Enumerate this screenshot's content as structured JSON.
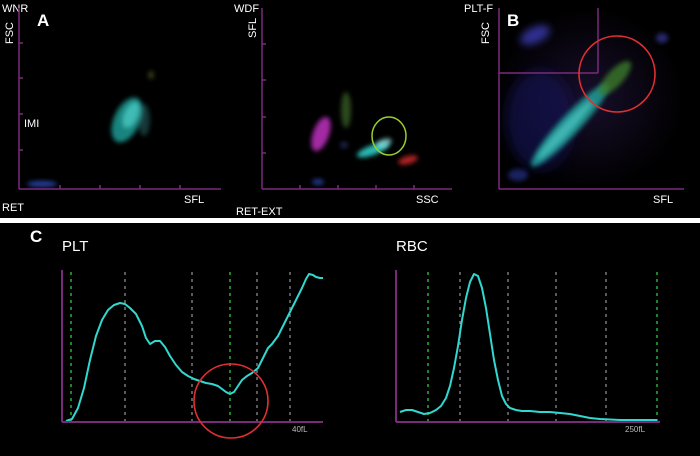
{
  "panels": {
    "a": {
      "letter": "A",
      "wnr": {
        "title": "WNR",
        "y_axis": "FSC",
        "x_axis": "SFL",
        "cluster_label": "IMI",
        "bottom_label": "RET"
      },
      "wdf": {
        "title": "WDF",
        "y_axis": "SFL",
        "x_axis": "SSC",
        "bottom_label": "RET-EXT"
      }
    },
    "b": {
      "letter": "B",
      "pltf": {
        "title": "PLT-F",
        "y_axis": "FSC",
        "x_axis": "SFL"
      }
    },
    "c": {
      "letter": "C",
      "plt": {
        "title": "PLT",
        "x_max_label": "40fL"
      },
      "rbc": {
        "title": "RBC",
        "x_max_label": "250fL"
      }
    }
  },
  "colors": {
    "axis": "#7a2a7a",
    "histogram_line": "#30d8d0",
    "divider": "#ffffff",
    "highlight_red": "#e03030",
    "highlight_green": "#9acd32",
    "dashed_green": "#2ecc40",
    "dashed_gray": "#8a8a8a"
  }
}
